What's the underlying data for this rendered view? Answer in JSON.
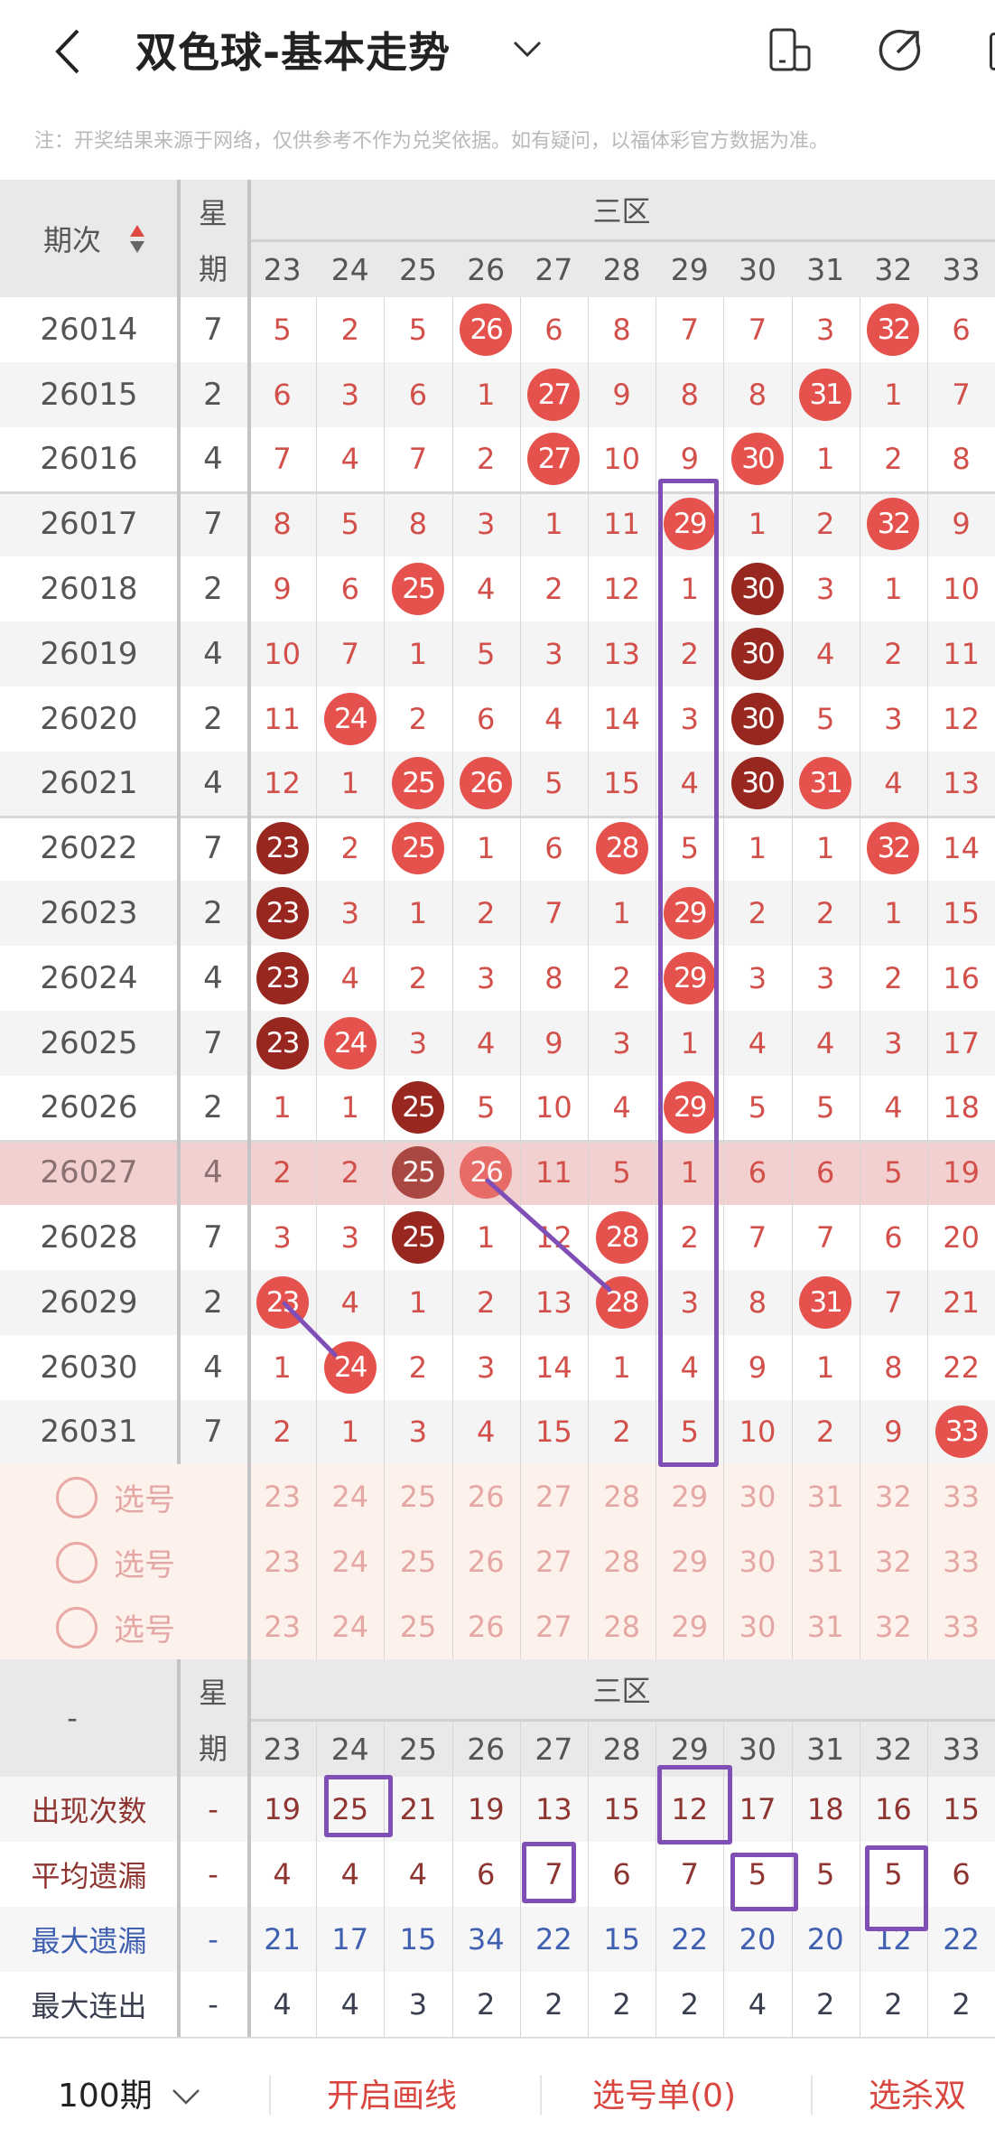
{
  "header": {
    "title": "双色球-基本走势",
    "title_dropdown_icon": "chevron-down-icon",
    "icons": [
      "device-switch-icon",
      "share-icon"
    ]
  },
  "note": "注：开奖结果来源于网络，仅供参考不作为兑奖依据。如有疑问，以福体彩官方数据为准。",
  "table": {
    "issue_header": "期次",
    "sort_icon": "sort-up-down-icon",
    "weekday_header": [
      "星",
      "期"
    ],
    "zone_header": "三区",
    "columns": [
      "23",
      "24",
      "25",
      "26",
      "27",
      "28",
      "29",
      "30",
      "31",
      "32",
      "33"
    ],
    "rows": [
      {
        "issue": "26014",
        "weekday": "7",
        "cells": [
          "5",
          "2",
          "5",
          {
            "ball": "26",
            "tone": "light"
          },
          "6",
          "8",
          "7",
          "7",
          "3",
          {
            "ball": "32",
            "tone": "light"
          },
          "6"
        ]
      },
      {
        "issue": "26015",
        "weekday": "2",
        "cells": [
          "6",
          "3",
          "6",
          "1",
          {
            "ball": "27",
            "tone": "light"
          },
          "9",
          "8",
          "8",
          {
            "ball": "31",
            "tone": "light"
          },
          "1",
          "7"
        ]
      },
      {
        "issue": "26016",
        "weekday": "4",
        "cells": [
          "7",
          "4",
          "7",
          "2",
          {
            "ball": "27",
            "tone": "light"
          },
          "10",
          "9",
          {
            "ball": "30",
            "tone": "light"
          },
          "1",
          "2",
          "8"
        ]
      },
      {
        "issue": "26017",
        "weekday": "7",
        "cells": [
          "8",
          "5",
          "8",
          "3",
          "1",
          "11",
          {
            "ball": "29",
            "tone": "light"
          },
          "1",
          "2",
          {
            "ball": "32",
            "tone": "light"
          },
          "9"
        ]
      },
      {
        "issue": "26018",
        "weekday": "2",
        "cells": [
          "9",
          "6",
          {
            "ball": "25",
            "tone": "light"
          },
          "4",
          "2",
          "12",
          "1",
          {
            "ball": "30",
            "tone": "dark"
          },
          "3",
          "1",
          "10"
        ]
      },
      {
        "issue": "26019",
        "weekday": "4",
        "cells": [
          "10",
          "7",
          "1",
          "5",
          "3",
          "13",
          "2",
          {
            "ball": "30",
            "tone": "dark"
          },
          "4",
          "2",
          "11"
        ]
      },
      {
        "issue": "26020",
        "weekday": "2",
        "cells": [
          "11",
          {
            "ball": "24",
            "tone": "light"
          },
          "2",
          "6",
          "4",
          "14",
          "3",
          {
            "ball": "30",
            "tone": "dark"
          },
          "5",
          "3",
          "12"
        ]
      },
      {
        "issue": "26021",
        "weekday": "4",
        "cells": [
          "12",
          "1",
          {
            "ball": "25",
            "tone": "light"
          },
          {
            "ball": "26",
            "tone": "light"
          },
          "5",
          "15",
          "4",
          {
            "ball": "30",
            "tone": "dark"
          },
          {
            "ball": "31",
            "tone": "light"
          },
          "4",
          "13"
        ]
      },
      {
        "issue": "26022",
        "weekday": "7",
        "cells": [
          {
            "ball": "23",
            "tone": "dark"
          },
          "2",
          {
            "ball": "25",
            "tone": "light"
          },
          "1",
          "6",
          {
            "ball": "28",
            "tone": "light"
          },
          "5",
          "1",
          "1",
          {
            "ball": "32",
            "tone": "light"
          },
          "14"
        ]
      },
      {
        "issue": "26023",
        "weekday": "2",
        "cells": [
          {
            "ball": "23",
            "tone": "dark"
          },
          "3",
          "1",
          "2",
          "7",
          "1",
          {
            "ball": "29",
            "tone": "light"
          },
          "2",
          "2",
          "1",
          "15"
        ]
      },
      {
        "issue": "26024",
        "weekday": "4",
        "cells": [
          {
            "ball": "23",
            "tone": "dark"
          },
          "4",
          "2",
          "3",
          "8",
          "2",
          {
            "ball": "29",
            "tone": "light"
          },
          "3",
          "3",
          "2",
          "16"
        ]
      },
      {
        "issue": "26025",
        "weekday": "7",
        "cells": [
          {
            "ball": "23",
            "tone": "dark"
          },
          {
            "ball": "24",
            "tone": "light"
          },
          "3",
          "4",
          "9",
          "3",
          "1",
          "4",
          "4",
          "3",
          "17"
        ]
      },
      {
        "issue": "26026",
        "weekday": "2",
        "cells": [
          "1",
          "1",
          {
            "ball": "25",
            "tone": "dark"
          },
          "5",
          "10",
          "4",
          {
            "ball": "29",
            "tone": "light"
          },
          "5",
          "5",
          "4",
          "18"
        ]
      },
      {
        "issue": "26027",
        "weekday": "4",
        "highlighted": true,
        "cells": [
          "2",
          "2",
          {
            "ball": "25",
            "tone": "dark"
          },
          {
            "ball": "26",
            "tone": "light"
          },
          "11",
          "5",
          "1",
          "6",
          "6",
          "5",
          "19"
        ]
      },
      {
        "issue": "26028",
        "weekday": "7",
        "cells": [
          "3",
          "3",
          {
            "ball": "25",
            "tone": "dark"
          },
          "1",
          "12",
          {
            "ball": "28",
            "tone": "light"
          },
          "2",
          "7",
          "7",
          "6",
          "20"
        ]
      },
      {
        "issue": "26029",
        "weekday": "2",
        "cells": [
          {
            "ball": "23",
            "tone": "light"
          },
          "4",
          "1",
          "2",
          "13",
          {
            "ball": "28",
            "tone": "light"
          },
          "3",
          "8",
          {
            "ball": "31",
            "tone": "light"
          },
          "7",
          "21"
        ]
      },
      {
        "issue": "26030",
        "weekday": "4",
        "cells": [
          "1",
          {
            "ball": "24",
            "tone": "light"
          },
          "2",
          "3",
          "14",
          "1",
          "4",
          "9",
          "1",
          "8",
          "22"
        ]
      },
      {
        "issue": "26031",
        "weekday": "7",
        "cells": [
          "2",
          "1",
          "3",
          "4",
          "15",
          "2",
          "5",
          "10",
          "2",
          "9",
          {
            "ball": "33",
            "tone": "light"
          }
        ]
      }
    ],
    "pick_rows": [
      {
        "label": "选号"
      },
      {
        "label": "选号"
      },
      {
        "label": "选号"
      }
    ],
    "footer_issue_header": "-",
    "stats": [
      {
        "label": "出现次数",
        "weekday": "-",
        "tone": "red",
        "values": [
          "19",
          "25",
          "21",
          "19",
          "13",
          "15",
          "12",
          "17",
          "18",
          "16",
          "15"
        ]
      },
      {
        "label": "平均遗漏",
        "weekday": "-",
        "tone": "red",
        "values": [
          "4",
          "4",
          "4",
          "6",
          "7",
          "6",
          "7",
          "5",
          "5",
          "5",
          "6"
        ]
      },
      {
        "label": "最大遗漏",
        "weekday": "-",
        "tone": "blue",
        "values": [
          "21",
          "17",
          "15",
          "34",
          "22",
          "15",
          "22",
          "20",
          "20",
          "12",
          "22"
        ]
      },
      {
        "label": "最大连出",
        "weekday": "-",
        "tone": "gray",
        "values": [
          "4",
          "4",
          "3",
          "2",
          "2",
          "2",
          "2",
          "4",
          "2",
          "2",
          "2"
        ]
      }
    ]
  },
  "bottom_bar": {
    "period": "100期",
    "period_icon": "chevron-down-icon",
    "draw_lines": "开启画线",
    "pick_list": "选号单(0)",
    "kill": "选杀双"
  },
  "colors": {
    "ball_light": "#e5524d",
    "ball_dark": "#97271f",
    "miss": "#d24f4a",
    "annotation": "#7f4fb5",
    "stat_blue": "#3f5fb0",
    "stat_red": "#8e3531",
    "action_red": "#d9463f"
  }
}
